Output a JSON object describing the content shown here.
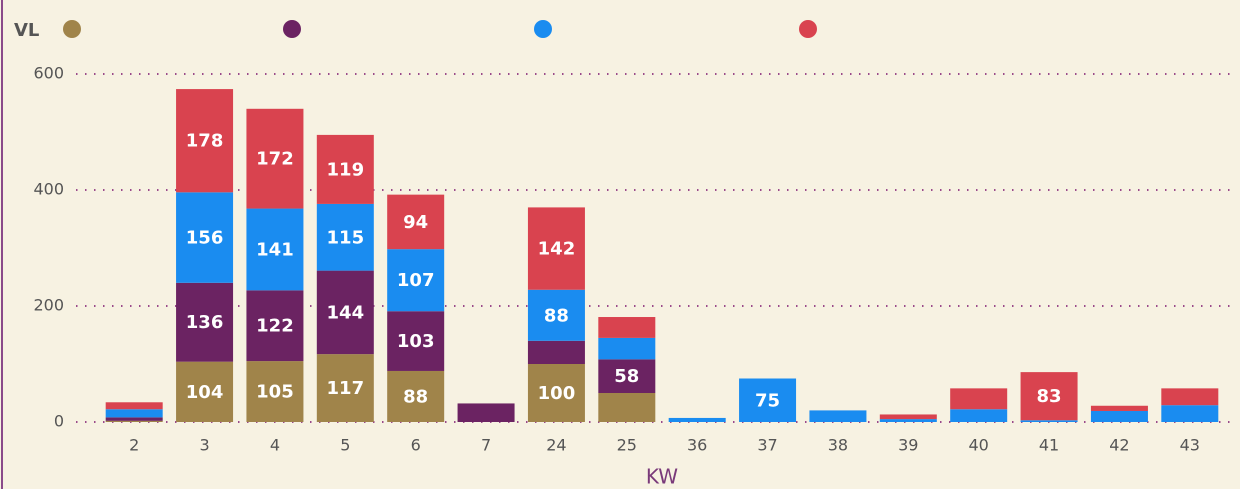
{
  "chart_data": {
    "type": "bar",
    "stacked": true,
    "legend_title": "VL",
    "x_label": "KW",
    "categories": [
      "2",
      "3",
      "4",
      "5",
      "6",
      "7",
      "24",
      "25",
      "36",
      "37",
      "38",
      "39",
      "40",
      "41",
      "42",
      "43"
    ],
    "series": [
      {
        "color": "#a0844a",
        "values": [
          2,
          104,
          105,
          117,
          88,
          0,
          100,
          50,
          0,
          0,
          0,
          0,
          0,
          0,
          0,
          0
        ]
      },
      {
        "color": "#6b2362",
        "values": [
          6,
          136,
          122,
          144,
          103,
          32,
          40,
          58,
          0,
          0,
          0,
          0,
          0,
          0,
          0,
          0
        ]
      },
      {
        "color": "#1a8cf0",
        "values": [
          14,
          156,
          141,
          115,
          107,
          0,
          88,
          37,
          7,
          75,
          20,
          5,
          22,
          3,
          19,
          29
        ]
      },
      {
        "color": "#d9434f",
        "values": [
          12,
          178,
          172,
          119,
          94,
          0,
          142,
          36,
          0,
          0,
          0,
          8,
          36,
          83,
          9,
          29
        ]
      }
    ],
    "ylim": [
      0,
      600
    ],
    "yticks": [
      0,
      200,
      400,
      600
    ],
    "grid": true,
    "legend_position": "top-left"
  }
}
